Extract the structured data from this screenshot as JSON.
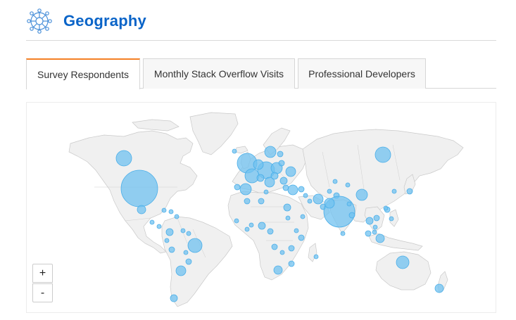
{
  "header": {
    "title": "Geography",
    "logo_icon": "globe-network-icon",
    "accent_color": "#0a64c8"
  },
  "tabs": [
    {
      "label": "Survey Respondents",
      "active": true
    },
    {
      "label": "Monthly Stack Overflow Visits",
      "active": false
    },
    {
      "label": "Professional Developers",
      "active": false
    }
  ],
  "map": {
    "zoom_in_label": "+",
    "zoom_out_label": "-",
    "bubble_color": "#70c2f0",
    "active_tab_color": "#f48024"
  }
}
